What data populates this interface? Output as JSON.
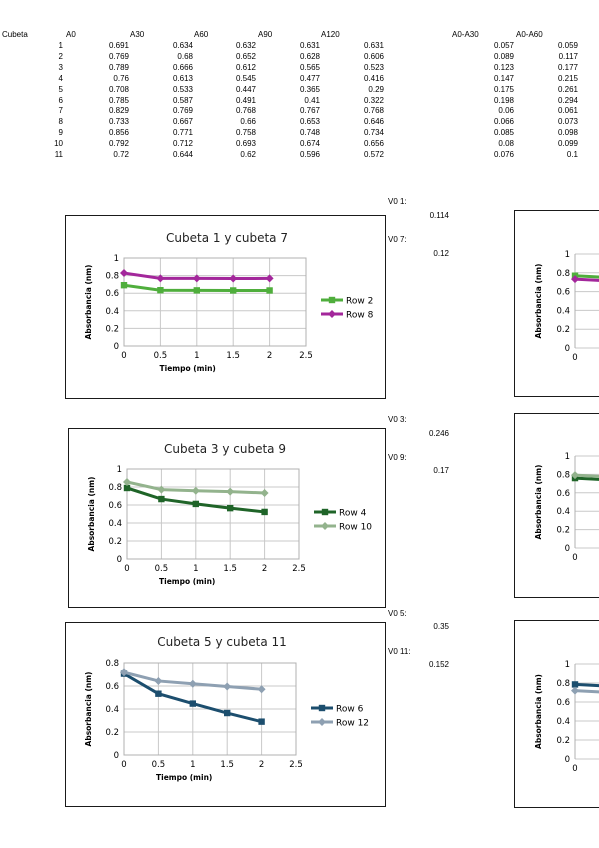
{
  "table": {
    "headers": {
      "cubeta": "Cubeta",
      "a0": "A0",
      "a30": "A30",
      "a60": "A60",
      "a90": "A90",
      "a120": "A120",
      "a0_a30": "A0-A30",
      "a0_a60": "A0-A60"
    },
    "rows": [
      {
        "cubeta": "1",
        "a0": "0.691",
        "a30": "0.634",
        "a60": "0.632",
        "a90": "0.631",
        "a120": "0.631",
        "d30": "0.057",
        "d60": "0.059"
      },
      {
        "cubeta": "2",
        "a0": "0.769",
        "a30": "0.68",
        "a60": "0.652",
        "a90": "0.628",
        "a120": "0.606",
        "d30": "0.089",
        "d60": "0.117"
      },
      {
        "cubeta": "3",
        "a0": "0.789",
        "a30": "0.666",
        "a60": "0.612",
        "a90": "0.565",
        "a120": "0.523",
        "d30": "0.123",
        "d60": "0.177"
      },
      {
        "cubeta": "4",
        "a0": "0.76",
        "a30": "0.613",
        "a60": "0.545",
        "a90": "0.477",
        "a120": "0.416",
        "d30": "0.147",
        "d60": "0.215"
      },
      {
        "cubeta": "5",
        "a0": "0.708",
        "a30": "0.533",
        "a60": "0.447",
        "a90": "0.365",
        "a120": "0.29",
        "d30": "0.175",
        "d60": "0.261"
      },
      {
        "cubeta": "6",
        "a0": "0.785",
        "a30": "0.587",
        "a60": "0.491",
        "a90": "0.41",
        "a120": "0.322",
        "d30": "0.198",
        "d60": "0.294"
      },
      {
        "cubeta": "7",
        "a0": "0.829",
        "a30": "0.769",
        "a60": "0.768",
        "a90": "0.767",
        "a120": "0.768",
        "d30": "0.06",
        "d60": "0.061"
      },
      {
        "cubeta": "8",
        "a0": "0.733",
        "a30": "0.667",
        "a60": "0.66",
        "a90": "0.653",
        "a120": "0.646",
        "d30": "0.066",
        "d60": "0.073"
      },
      {
        "cubeta": "9",
        "a0": "0.856",
        "a30": "0.771",
        "a60": "0.758",
        "a90": "0.748",
        "a120": "0.734",
        "d30": "0.085",
        "d60": "0.098"
      },
      {
        "cubeta": "10",
        "a0": "0.792",
        "a30": "0.712",
        "a60": "0.693",
        "a90": "0.674",
        "a120": "0.656",
        "d30": "0.08",
        "d60": "0.099"
      },
      {
        "cubeta": "11",
        "a0": "0.72",
        "a30": "0.644",
        "a60": "0.62",
        "a90": "0.596",
        "a120": "0.572",
        "d30": "0.076",
        "d60": "0.1"
      }
    ]
  },
  "velocities": [
    {
      "label": "V0 1:",
      "value": "0.114"
    },
    {
      "label": "V0 7:",
      "value": "0.12"
    },
    {
      "label": "V0 3:",
      "value": "0.246"
    },
    {
      "label": "V0 9:",
      "value": "0.17"
    },
    {
      "label": "V0 5:",
      "value": "0.35"
    },
    {
      "label": "V0 11:",
      "value": "0.152"
    }
  ],
  "colors": {
    "row2": "#4fae3c",
    "row8": "#a3279b",
    "row4": "#1f6428",
    "row10": "#93b38d",
    "row6": "#1c4e6e",
    "row12": "#8ea0b2",
    "grid": "#c8c8c8",
    "border": "#1a1a1a"
  },
  "chart_data": [
    {
      "type": "line",
      "title": "Cubeta 1 y cubeta 7",
      "xlabel": "Tiempo (min)",
      "ylabel": "Absorbancia (nm)",
      "xlim": [
        0,
        2.5
      ],
      "ylim": [
        0,
        1
      ],
      "xticks": [
        "0",
        "0.5",
        "1",
        "1.5",
        "2",
        "2.5"
      ],
      "yticks": [
        "0",
        "0.2",
        "0.4",
        "0.6",
        "0.8",
        "1"
      ],
      "grid": true,
      "legend_position": "right",
      "x": [
        0,
        0.5,
        1,
        1.5,
        2
      ],
      "series": [
        {
          "name": "Row 2",
          "values": [
            0.691,
            0.634,
            0.632,
            0.631,
            0.631
          ],
          "color_key": "row2",
          "marker": "square"
        },
        {
          "name": "Row 8",
          "values": [
            0.829,
            0.769,
            0.768,
            0.767,
            0.768
          ],
          "color_key": "row8",
          "marker": "diamond"
        }
      ]
    },
    {
      "type": "line",
      "title": "Cubeta 3 y cubeta 9",
      "xlabel": "Tiempo (min)",
      "ylabel": "Absorbancia (nm)",
      "xlim": [
        0,
        2.5
      ],
      "ylim": [
        0,
        1
      ],
      "xticks": [
        "0",
        "0.5",
        "1",
        "1.5",
        "2",
        "2.5"
      ],
      "yticks": [
        "0",
        "0.2",
        "0.4",
        "0.6",
        "0.8",
        "1"
      ],
      "grid": true,
      "legend_position": "right",
      "x": [
        0,
        0.5,
        1,
        1.5,
        2
      ],
      "series": [
        {
          "name": "Row 4",
          "values": [
            0.789,
            0.666,
            0.612,
            0.565,
            0.523
          ],
          "color_key": "row4",
          "marker": "square"
        },
        {
          "name": "Row 10",
          "values": [
            0.856,
            0.771,
            0.758,
            0.748,
            0.734
          ],
          "color_key": "row10",
          "marker": "diamond"
        }
      ]
    },
    {
      "type": "line",
      "title": "Cubeta 5 y cubeta 11",
      "xlabel": "Tiempo (min)",
      "ylabel": "Absorbancia (nm)",
      "xlim": [
        0,
        2.5
      ],
      "ylim": [
        0,
        0.8
      ],
      "xticks": [
        "0",
        "0.5",
        "1",
        "1.5",
        "2",
        "2.5"
      ],
      "yticks": [
        "0",
        "0.2",
        "0.4",
        "0.6",
        "0.8"
      ],
      "grid": true,
      "legend_position": "right",
      "x": [
        0,
        0.5,
        1,
        1.5,
        2
      ],
      "series": [
        {
          "name": "Row 6",
          "values": [
            0.708,
            0.533,
            0.447,
            0.365,
            0.29
          ],
          "color_key": "row6",
          "marker": "square"
        },
        {
          "name": "Row 12",
          "values": [
            0.72,
            0.644,
            0.62,
            0.596,
            0.572
          ],
          "color_key": "row12",
          "marker": "diamond"
        }
      ]
    },
    {
      "type": "line",
      "title": "",
      "ylabel": "Absorbancia (nm)",
      "ylim": [
        0,
        1
      ],
      "yticks": [
        "0",
        "0.2",
        "0.4",
        "0.6",
        "0.8",
        "1"
      ],
      "xticks": [
        "0"
      ],
      "x": [
        0
      ],
      "series": [
        {
          "values": [
            0.769
          ],
          "color_key": "row2",
          "marker": "square"
        },
        {
          "values": [
            0.733
          ],
          "color_key": "row8",
          "marker": "diamond"
        }
      ]
    },
    {
      "type": "line",
      "title": "",
      "ylabel": "Absorbancia (nm)",
      "ylim": [
        0,
        1
      ],
      "yticks": [
        "0",
        "0.2",
        "0.4",
        "0.6",
        "0.8",
        "1"
      ],
      "xticks": [
        "0"
      ],
      "x": [
        0
      ],
      "series": [
        {
          "values": [
            0.76
          ],
          "color_key": "row4",
          "marker": "square"
        },
        {
          "values": [
            0.792
          ],
          "color_key": "row10",
          "marker": "diamond"
        }
      ]
    },
    {
      "type": "line",
      "title": "",
      "ylabel": "Absorbancia (nm)",
      "ylim": [
        0,
        1
      ],
      "yticks": [
        "0",
        "0.2",
        "0.4",
        "0.6",
        "0.8",
        "1"
      ],
      "xticks": [
        "0"
      ],
      "x": [
        0
      ],
      "series": [
        {
          "values": [
            0.785
          ],
          "color_key": "row6",
          "marker": "square"
        },
        {
          "values": [
            0.72
          ],
          "color_key": "row12",
          "marker": "diamond"
        }
      ]
    }
  ]
}
